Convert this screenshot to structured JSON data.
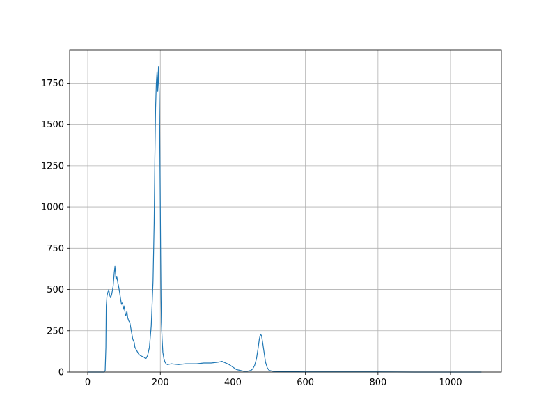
{
  "chart_data": {
    "type": "line",
    "title": "",
    "xlabel": "",
    "ylabel": "",
    "xlim": [
      -50,
      1140
    ],
    "ylim": [
      0,
      1950
    ],
    "xticks": [
      0,
      200,
      400,
      600,
      800,
      1000
    ],
    "yticks": [
      0,
      250,
      500,
      750,
      1000,
      1250,
      1500,
      1750
    ],
    "grid": true,
    "legend": "none",
    "color": "#1f77b4",
    "series": [
      {
        "x": [
          0,
          45,
          48,
          50,
          51,
          53,
          55,
          58,
          60,
          63,
          66,
          70,
          73,
          75,
          78,
          80,
          83,
          85,
          88,
          90,
          93,
          96,
          98,
          100,
          103,
          105,
          108,
          110,
          113,
          116,
          120,
          124,
          128,
          130,
          135,
          140,
          145,
          150,
          155,
          160,
          165,
          170,
          175,
          180,
          183,
          185,
          187,
          189,
          191,
          193,
          195,
          196,
          197,
          198,
          199,
          200,
          201,
          202,
          203,
          205,
          207,
          210,
          213,
          216,
          220,
          230,
          250,
          270,
          300,
          320,
          340,
          360,
          370,
          380,
          390,
          400,
          410,
          420,
          430,
          440,
          450,
          455,
          460,
          465,
          470,
          473,
          476,
          479,
          482,
          486,
          490,
          495,
          500,
          510,
          520,
          540,
          560,
          600,
          650,
          700,
          800,
          900,
          1000,
          1085
        ],
        "y": [
          0,
          0,
          10,
          150,
          400,
          460,
          480,
          500,
          470,
          450,
          470,
          520,
          600,
          640,
          560,
          580,
          540,
          520,
          480,
          450,
          410,
          420,
          380,
          400,
          360,
          340,
          370,
          330,
          310,
          300,
          250,
          200,
          180,
          150,
          130,
          110,
          100,
          95,
          90,
          80,
          100,
          150,
          280,
          550,
          900,
          1300,
          1600,
          1750,
          1820,
          1700,
          1850,
          1750,
          1700,
          1550,
          1300,
          1000,
          700,
          450,
          300,
          200,
          120,
          80,
          60,
          50,
          45,
          50,
          45,
          50,
          50,
          55,
          55,
          60,
          65,
          55,
          45,
          30,
          15,
          10,
          5,
          5,
          10,
          20,
          40,
          80,
          150,
          200,
          230,
          220,
          180,
          120,
          60,
          25,
          10,
          5,
          3,
          2,
          2,
          1,
          1,
          1,
          1,
          0,
          0,
          0
        ]
      }
    ]
  }
}
